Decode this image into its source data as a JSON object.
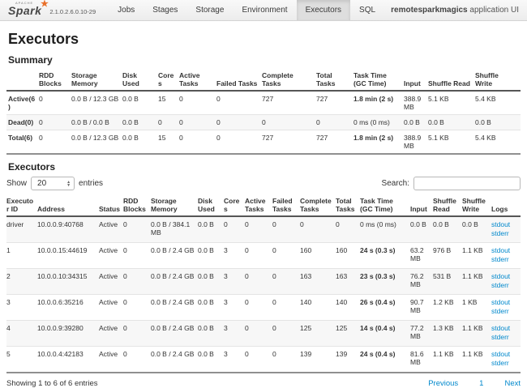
{
  "nav": {
    "logo_text": "Spark",
    "logo_apache": "APACHE",
    "logo_star": "★",
    "version": "2.1.0.2.6.0.10-29",
    "items": [
      {
        "label": "Jobs"
      },
      {
        "label": "Stages"
      },
      {
        "label": "Storage"
      },
      {
        "label": "Environment"
      },
      {
        "label": "Executors"
      },
      {
        "label": "SQL"
      }
    ],
    "active": "Executors",
    "app_name": "remotesparkmagics",
    "app_suffix": " application UI"
  },
  "page": {
    "title": "Executors"
  },
  "summary": {
    "heading": "Summary",
    "columns": [
      "",
      "RDD Blocks",
      "Storage Memory",
      "Disk Used",
      "Cores",
      "Active Tasks",
      "Failed Tasks",
      "Complete Tasks",
      "Total Tasks",
      "Task Time (GC Time)",
      "Input",
      "Shuffle Read",
      "Shuffle Write"
    ],
    "rows": [
      {
        "label": "Active(6)",
        "cells": [
          "0",
          "0.0 B / 12.3 GB",
          "0.0 B",
          "15",
          "0",
          "0",
          "727",
          "727",
          "1.8 min (2 s)",
          "388.9 MB",
          "5.1 KB",
          "5.4 KB"
        ]
      },
      {
        "label": "Dead(0)",
        "cells": [
          "0",
          "0.0 B / 0.0 B",
          "0.0 B",
          "0",
          "0",
          "0",
          "0",
          "0",
          "0 ms (0 ms)",
          "0.0 B",
          "0.0 B",
          "0.0 B"
        ]
      },
      {
        "label": "Total(6)",
        "cells": [
          "0",
          "0.0 B / 12.3 GB",
          "0.0 B",
          "15",
          "0",
          "0",
          "727",
          "727",
          "1.8 min (2 s)",
          "388.9 MB",
          "5.1 KB",
          "5.4 KB"
        ]
      }
    ]
  },
  "executors": {
    "heading": "Executors",
    "show_label": "Show",
    "entries_value": "20",
    "entries_label": "entries",
    "search_label": "Search:",
    "columns": [
      "Executor ID",
      "Address",
      "Status",
      "RDD Blocks",
      "Storage Memory",
      "Disk Used",
      "Cores",
      "Active Tasks",
      "Failed Tasks",
      "Complete Tasks",
      "Total Tasks",
      "Task Time (GC Time)",
      "Input",
      "Shuffle Read",
      "Shuffle Write",
      "Logs"
    ],
    "rows": [
      {
        "cells": [
          "driver",
          "10.0.0.9:40768",
          "Active",
          "0",
          "0.0 B / 384.1 MB",
          "0.0 B",
          "0",
          "0",
          "0",
          "0",
          "0",
          "0 ms (0 ms)",
          "0.0 B",
          "0.0 B",
          "0.0 B"
        ],
        "logs": [
          "stdout",
          "stderr"
        ]
      },
      {
        "cells": [
          "1",
          "10.0.0.15:44619",
          "Active",
          "0",
          "0.0 B / 2.4 GB",
          "0.0 B",
          "3",
          "0",
          "0",
          "160",
          "160",
          "24 s (0.3 s)",
          "63.2 MB",
          "976 B",
          "1.1 KB"
        ],
        "logs": [
          "stdout",
          "stderr"
        ]
      },
      {
        "cells": [
          "2",
          "10.0.0.10:34315",
          "Active",
          "0",
          "0.0 B / 2.4 GB",
          "0.0 B",
          "3",
          "0",
          "0",
          "163",
          "163",
          "23 s (0.3 s)",
          "76.2 MB",
          "531 B",
          "1.1 KB"
        ],
        "logs": [
          "stdout",
          "stderr"
        ]
      },
      {
        "cells": [
          "3",
          "10.0.0.6:35216",
          "Active",
          "0",
          "0.0 B / 2.4 GB",
          "0.0 B",
          "3",
          "0",
          "0",
          "140",
          "140",
          "26 s (0.4 s)",
          "90.7 MB",
          "1.2 KB",
          "1 KB"
        ],
        "logs": [
          "stdout",
          "stderr"
        ]
      },
      {
        "cells": [
          "4",
          "10.0.0.9:39280",
          "Active",
          "0",
          "0.0 B / 2.4 GB",
          "0.0 B",
          "3",
          "0",
          "0",
          "125",
          "125",
          "14 s (0.4 s)",
          "77.2 MB",
          "1.3 KB",
          "1.1 KB"
        ],
        "logs": [
          "stdout",
          "stderr"
        ]
      },
      {
        "cells": [
          "5",
          "10.0.0.4:42183",
          "Active",
          "0",
          "0.0 B / 2.4 GB",
          "0.0 B",
          "3",
          "0",
          "0",
          "139",
          "139",
          "24 s (0.4 s)",
          "81.6 MB",
          "1.1 KB",
          "1.1 KB"
        ],
        "logs": [
          "stdout",
          "stderr"
        ]
      }
    ],
    "footer": {
      "showing": "Showing 1 to 6 of 6 entries",
      "pagination": [
        "Previous",
        "1",
        "Next"
      ]
    }
  },
  "colors": {
    "link": "#0088cc",
    "spark_orange": "#e8702a",
    "navbar_bg": "#ececec",
    "active_tab_bg": "#dedede",
    "stripe_bg": "#f7f7f7"
  }
}
